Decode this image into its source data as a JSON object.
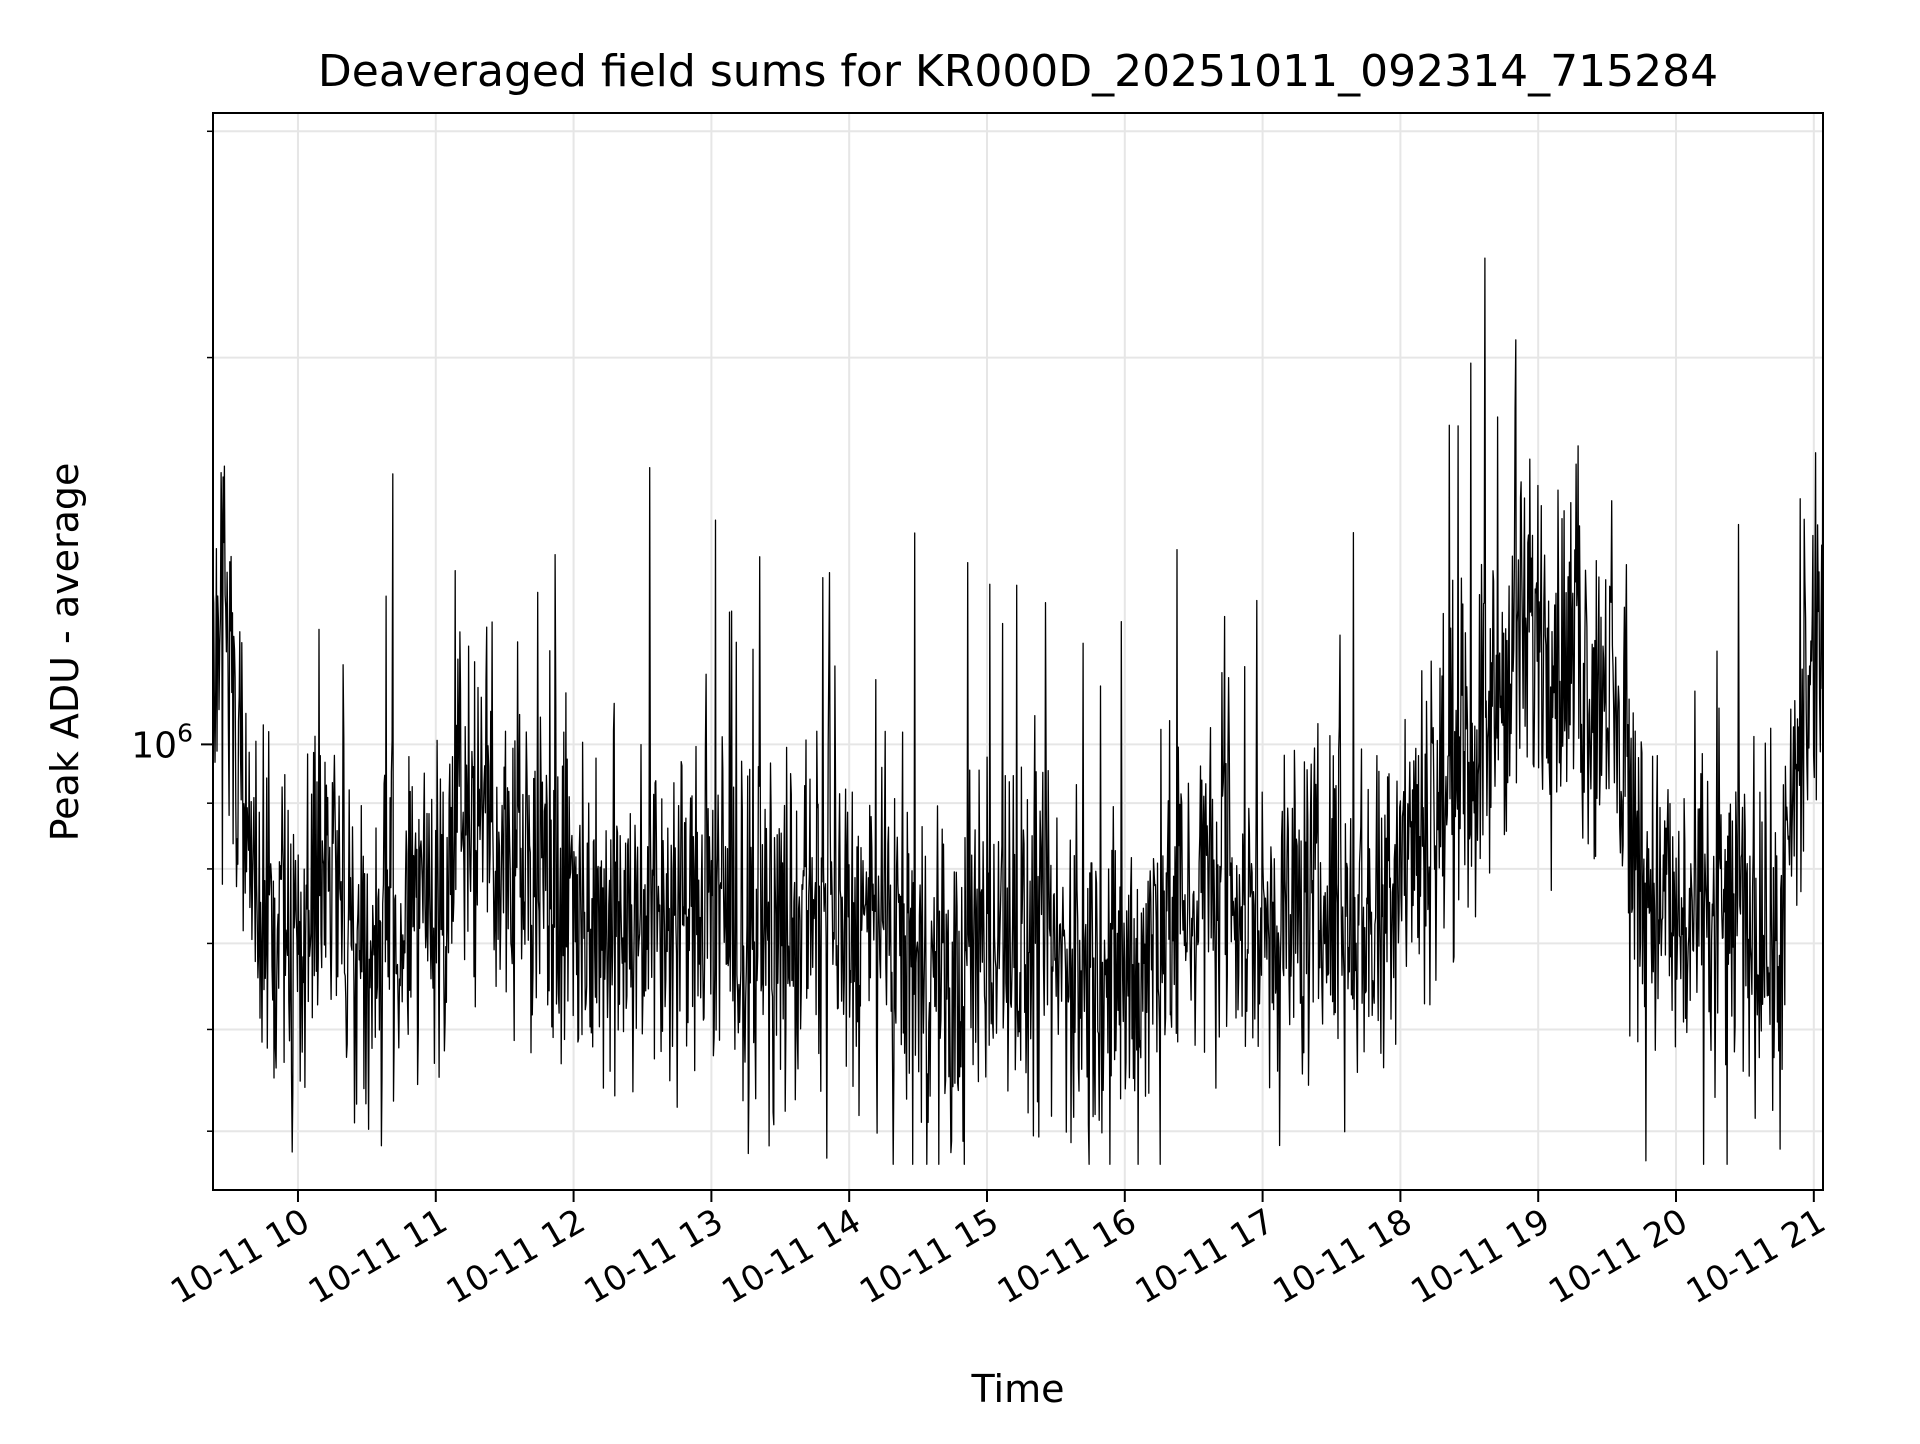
{
  "chart_data": {
    "type": "line",
    "title": "Deaveraged field sums for KR000D_20251011_092314_715284",
    "xlabel": "Time",
    "ylabel": "Peak ADU - average",
    "x_range": [
      "2025-10-11 09:23:14",
      "2025-10-11 21:04:00"
    ],
    "ylim": [
      450000,
      3100000
    ],
    "yscale": "log",
    "grid": true,
    "line_color": "#000000",
    "x_ticks": [
      {
        "time": "2025-10-11 10:00",
        "label": "10-11 10"
      },
      {
        "time": "2025-10-11 11:00",
        "label": "10-11 11"
      },
      {
        "time": "2025-10-11 12:00",
        "label": "10-11 12"
      },
      {
        "time": "2025-10-11 13:00",
        "label": "10-11 13"
      },
      {
        "time": "2025-10-11 14:00",
        "label": "10-11 14"
      },
      {
        "time": "2025-10-11 15:00",
        "label": "10-11 15"
      },
      {
        "time": "2025-10-11 16:00",
        "label": "10-11 16"
      },
      {
        "time": "2025-10-11 17:00",
        "label": "10-11 17"
      },
      {
        "time": "2025-10-11 18:00",
        "label": "10-11 18"
      },
      {
        "time": "2025-10-11 19:00",
        "label": "10-11 19"
      },
      {
        "time": "2025-10-11 20:00",
        "label": "10-11 20"
      },
      {
        "time": "2025-10-11 21:00",
        "label": "10-11 21"
      }
    ],
    "y_major_ticks": [
      {
        "value": 1000000,
        "base": "10",
        "exp": "6"
      }
    ],
    "y_minor_ticks": [
      500000,
      600000,
      700000,
      800000,
      900000,
      2000000,
      3000000
    ],
    "series": [
      {
        "x": [
          "2025-10-11 09:23",
          "2025-10-11 09:30",
          "2025-10-11 09:40",
          "2025-10-11 09:50",
          "2025-10-11 10:00",
          "2025-10-11 10:15",
          "2025-10-11 10:30",
          "2025-10-11 10:45",
          "2025-10-11 11:00",
          "2025-10-11 11:15",
          "2025-10-11 11:30",
          "2025-10-11 11:45",
          "2025-10-11 12:00",
          "2025-10-11 12:15",
          "2025-10-11 12:30",
          "2025-10-11 12:45",
          "2025-10-11 13:00",
          "2025-10-11 13:15",
          "2025-10-11 13:30",
          "2025-10-11 13:45",
          "2025-10-11 14:00",
          "2025-10-11 14:15",
          "2025-10-11 14:30",
          "2025-10-11 14:45",
          "2025-10-11 15:00",
          "2025-10-11 15:15",
          "2025-10-11 15:30",
          "2025-10-11 15:45",
          "2025-10-11 16:00",
          "2025-10-11 16:15",
          "2025-10-11 16:30",
          "2025-10-11 16:45",
          "2025-10-11 17:00",
          "2025-10-11 17:15",
          "2025-10-11 17:30",
          "2025-10-11 17:45",
          "2025-10-11 18:00",
          "2025-10-11 18:15",
          "2025-10-11 18:30",
          "2025-10-11 18:45",
          "2025-10-11 19:00",
          "2025-10-11 19:15",
          "2025-10-11 19:30",
          "2025-10-11 19:45",
          "2025-10-11 20:00",
          "2025-10-11 20:15",
          "2025-10-11 20:30",
          "2025-10-11 20:45",
          "2025-10-11 21:04"
        ],
        "y": [
          1200000,
          1150000,
          800000,
          700000,
          720000,
          780000,
          680000,
          710000,
          760000,
          900000,
          820000,
          800000,
          770000,
          720000,
          760000,
          740000,
          740000,
          710000,
          700000,
          730000,
          720000,
          700000,
          680000,
          620000,
          720000,
          700000,
          680000,
          660000,
          640000,
          720000,
          780000,
          760000,
          730000,
          740000,
          760000,
          720000,
          850000,
          900000,
          980000,
          1100000,
          1250000,
          1150000,
          1100000,
          800000,
          720000,
          720000,
          740000,
          700000,
          1300000
        ]
      }
    ]
  }
}
